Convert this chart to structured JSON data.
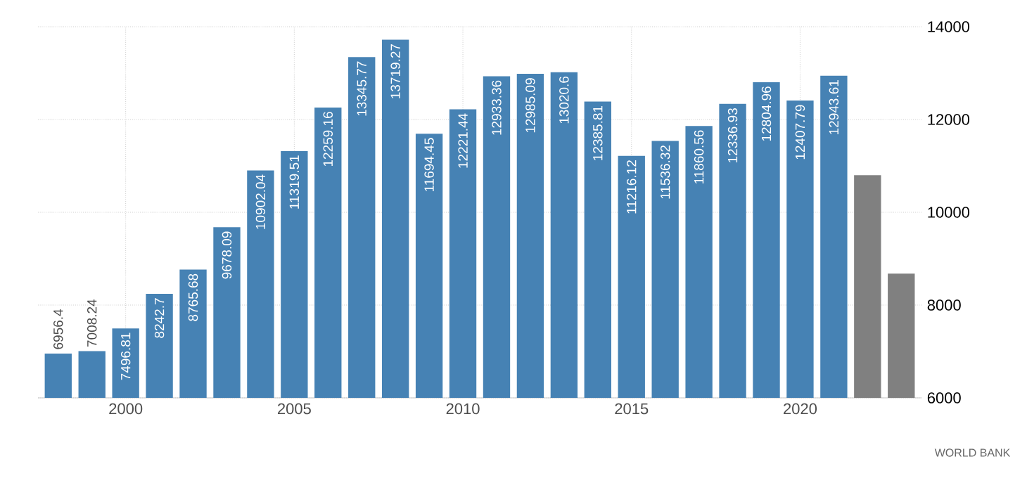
{
  "chart_data": {
    "type": "bar",
    "x": [
      1998,
      1999,
      2000,
      2001,
      2002,
      2003,
      2004,
      2005,
      2006,
      2007,
      2008,
      2009,
      2010,
      2011,
      2012,
      2013,
      2014,
      2015,
      2016,
      2017,
      2018,
      2019,
      2020,
      2021,
      2022,
      2023
    ],
    "values": [
      6956.4,
      7008.24,
      7496.81,
      8242.7,
      8765.68,
      9678.09,
      10902.04,
      11319.51,
      12259.16,
      13345.77,
      13719.27,
      11694.45,
      12221.44,
      12933.36,
      12985.09,
      13020.6,
      12385.81,
      11216.12,
      11536.32,
      11860.56,
      12336.93,
      12804.96,
      12407.79,
      12943.61,
      10800,
      8680
    ],
    "value_labels": [
      "6956.4",
      "7008.24",
      "7496.81",
      "8242.7",
      "8765.68",
      "9678.09",
      "10902.04",
      "11319.51",
      "12259.16",
      "13345.77",
      "13719.27",
      "11694.45",
      "12221.44",
      "12933.36",
      "12985.09",
      "13020.6",
      "12385.81",
      "11216.12",
      "11536.32",
      "11860.56",
      "12336.93",
      "12804.96",
      "12407.79",
      "12943.61",
      null,
      null
    ],
    "colors": [
      "#4682b4",
      "#4682b4",
      "#4682b4",
      "#4682b4",
      "#4682b4",
      "#4682b4",
      "#4682b4",
      "#4682b4",
      "#4682b4",
      "#4682b4",
      "#4682b4",
      "#4682b4",
      "#4682b4",
      "#4682b4",
      "#4682b4",
      "#4682b4",
      "#4682b4",
      "#4682b4",
      "#4682b4",
      "#4682b4",
      "#4682b4",
      "#4682b4",
      "#4682b4",
      "#4682b4",
      "#808080",
      "#808080"
    ],
    "xlim": [
      1997.4,
      2023.6
    ],
    "xticks": [
      2000,
      2005,
      2010,
      2015,
      2020
    ],
    "ylim": [
      6000,
      14000
    ],
    "yticks": [
      6000,
      8000,
      10000,
      12000,
      14000
    ],
    "grid": true,
    "annotations": [
      "WORLD BANK"
    ]
  }
}
